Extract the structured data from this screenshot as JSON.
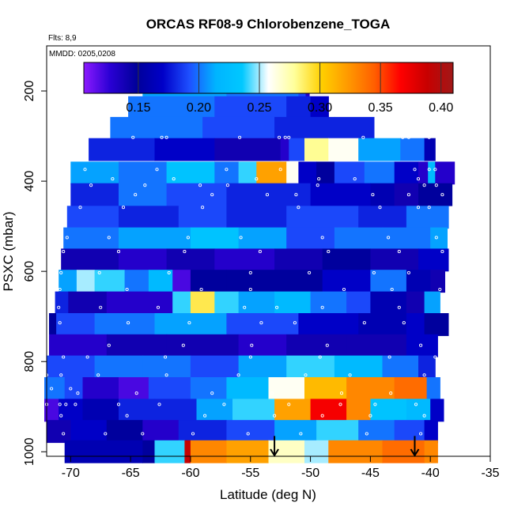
{
  "chart_data": {
    "type": "heatmap",
    "title": "ORCAS RF08-9 Chlorobenzene_TOGA",
    "flights_label": "Flts: 8,9",
    "date_label": "MMDD: 0205,0208",
    "xlabel": "Latitude (deg N)",
    "ylabel": "PSXC (mbar)",
    "xlim": [
      -72,
      -35
    ],
    "ylim": [
      1010,
      100
    ],
    "x_ticks": [
      -70,
      -65,
      -60,
      -55,
      -50,
      -45,
      -40,
      -35
    ],
    "y_ticks": [
      200,
      400,
      600,
      800,
      1000
    ],
    "colorbar": {
      "range": [
        0.105,
        0.41
      ],
      "ticks": [
        0.15,
        0.2,
        0.25,
        0.3,
        0.35,
        0.4
      ],
      "tick_labels": [
        "0.15",
        "0.20",
        "0.25",
        "0.30",
        "0.35",
        "0.40"
      ],
      "colors": [
        "#8c1aff",
        "#2a00d4",
        "#00009a",
        "#0000c8",
        "#1e50ff",
        "#00b4ff",
        "#00c8ff",
        "#ffffff",
        "#ffff99",
        "#ffd000",
        "#ff9a00",
        "#ff6000",
        "#ff0000",
        "#c80000",
        "#a01818"
      ]
    },
    "rows": [
      {
        "p": 188,
        "lat0": -64.0,
        "lat1": -50.1,
        "segments": [
          [
            -64.0,
            0.21
          ],
          [
            -57.0,
            0.2
          ],
          [
            -51.0,
            0.19
          ],
          [
            -50.4,
            0.13
          ]
        ]
      },
      {
        "p": 237,
        "lat0": -65.2,
        "lat1": -48.5,
        "segments": [
          [
            -65.2,
            0.2
          ],
          [
            -58.0,
            0.19
          ],
          [
            -52.0,
            0.18
          ],
          [
            -50.0,
            0.17
          ]
        ]
      },
      {
        "p": 283,
        "lat0": -66.7,
        "lat1": -44.7,
        "segments": [
          [
            -66.7,
            0.2
          ],
          [
            -59.0,
            0.19
          ],
          [
            -53.0,
            0.18
          ],
          [
            -48.0,
            0.18
          ]
        ]
      },
      {
        "p": 330,
        "lat0": -68.5,
        "lat1": -39.6,
        "segments": [
          [
            -68.5,
            0.18
          ],
          [
            -63.0,
            0.17
          ],
          [
            -58.0,
            0.14
          ],
          [
            -52.5,
            0.13
          ],
          [
            -51.8,
            0.19
          ],
          [
            -50.5,
            0.28
          ],
          [
            -48.5,
            0.26
          ],
          [
            -46.0,
            0.21
          ],
          [
            -42.5,
            0.2
          ],
          [
            -40.5,
            0.16
          ]
        ]
      },
      {
        "p": 382,
        "lat0": -70.0,
        "lat1": -38.0,
        "segments": [
          [
            -70.0,
            0.21
          ],
          [
            -66.0,
            0.2
          ],
          [
            -62.0,
            0.23
          ],
          [
            -58.0,
            0.2
          ],
          [
            -56.0,
            0.24
          ],
          [
            -54.5,
            0.32
          ],
          [
            -52.0,
            0.26
          ],
          [
            -51.0,
            0.17
          ],
          [
            -49.5,
            0.15
          ],
          [
            -48.0,
            0.19
          ],
          [
            -45.5,
            0.2
          ],
          [
            -43.0,
            0.17
          ],
          [
            -41.0,
            0.13
          ],
          [
            -40.2,
            0.22
          ],
          [
            -39.6,
            0.13
          ]
        ]
      },
      {
        "p": 430,
        "lat0": -70.0,
        "lat1": -38.2,
        "segments": [
          [
            -70.0,
            0.18
          ],
          [
            -66.0,
            0.2
          ],
          [
            -62.0,
            0.19
          ],
          [
            -57.0,
            0.18
          ],
          [
            -50.0,
            0.17
          ],
          [
            -45.0,
            0.16
          ],
          [
            -43.0,
            0.14
          ],
          [
            -41.0,
            0.15
          ]
        ]
      },
      {
        "p": 480,
        "lat0": -70.3,
        "lat1": -38.5,
        "segments": [
          [
            -70.3,
            0.19
          ],
          [
            -66.0,
            0.18
          ],
          [
            -61.0,
            0.19
          ],
          [
            -57.0,
            0.18
          ],
          [
            -52.0,
            0.19
          ],
          [
            -46.0,
            0.18
          ],
          [
            -42.0,
            0.2
          ]
        ]
      },
      {
        "p": 528,
        "lat0": -70.6,
        "lat1": -38.6,
        "segments": [
          [
            -70.6,
            0.2
          ],
          [
            -66.0,
            0.21
          ],
          [
            -60.0,
            0.23
          ],
          [
            -56.0,
            0.21
          ],
          [
            -52.0,
            0.19
          ],
          [
            -48.0,
            0.2
          ],
          [
            -44.0,
            0.2
          ],
          [
            -40.0,
            0.21
          ]
        ]
      },
      {
        "p": 575,
        "lat0": -70.8,
        "lat1": -38.5,
        "segments": [
          [
            -70.8,
            0.14
          ],
          [
            -66.0,
            0.13
          ],
          [
            -62.0,
            0.14
          ],
          [
            -58.0,
            0.13
          ],
          [
            -53.0,
            0.14
          ],
          [
            -49.0,
            0.15
          ],
          [
            -45.0,
            0.14
          ],
          [
            -41.0,
            0.17
          ]
        ]
      },
      {
        "p": 622,
        "lat0": -71.0,
        "lat1": -38.8,
        "segments": [
          [
            -71.0,
            0.21
          ],
          [
            -69.5,
            0.25
          ],
          [
            -68.0,
            0.24
          ],
          [
            -65.5,
            0.2
          ],
          [
            -63.5,
            0.22
          ],
          [
            -61.5,
            0.12
          ],
          [
            -60.0,
            0.15
          ],
          [
            -57.0,
            0.15
          ],
          [
            -53.0,
            0.15
          ],
          [
            -49.0,
            0.17
          ],
          [
            -45.0,
            0.2
          ],
          [
            -42.0,
            0.16
          ],
          [
            -40.0,
            0.14
          ]
        ]
      },
      {
        "p": 670,
        "lat0": -71.3,
        "lat1": -39.2,
        "segments": [
          [
            -71.3,
            0.18
          ],
          [
            -70.2,
            0.14
          ],
          [
            -67.0,
            0.13
          ],
          [
            -61.5,
            0.24
          ],
          [
            -60.0,
            0.29
          ],
          [
            -58.0,
            0.24
          ],
          [
            -56.0,
            0.21
          ],
          [
            -53.0,
            0.22
          ],
          [
            -50.0,
            0.2
          ],
          [
            -47.0,
            0.19
          ],
          [
            -45.0,
            0.16
          ],
          [
            -42.0,
            0.14
          ],
          [
            -40.5,
            0.21
          ]
        ]
      },
      {
        "p": 718,
        "lat0": -71.8,
        "lat1": -38.5,
        "segments": [
          [
            -71.8,
            0.15
          ],
          [
            -71.2,
            0.19
          ],
          [
            -68.0,
            0.2
          ],
          [
            -63.0,
            0.21
          ],
          [
            -57.0,
            0.19
          ],
          [
            -51.0,
            0.17
          ],
          [
            -46.0,
            0.16
          ],
          [
            -42.0,
            0.17
          ],
          [
            -40.5,
            0.15
          ]
        ]
      },
      {
        "p": 765,
        "lat0": -71.8,
        "lat1": -39.4,
        "segments": [
          [
            -71.8,
            0.13
          ],
          [
            -67.0,
            0.14
          ],
          [
            -62.0,
            0.14
          ],
          [
            -56.0,
            0.13
          ],
          [
            -52.0,
            0.14
          ],
          [
            -47.0,
            0.14
          ],
          [
            -42.0,
            0.17
          ]
        ]
      },
      {
        "p": 812,
        "lat0": -72.0,
        "lat1": -39.6,
        "segments": [
          [
            -72.0,
            0.19
          ],
          [
            -68.0,
            0.2
          ],
          [
            -64.0,
            0.2
          ],
          [
            -60.0,
            0.19
          ],
          [
            -56.0,
            0.21
          ],
          [
            -52.0,
            0.24
          ],
          [
            -48.0,
            0.22
          ],
          [
            -44.0,
            0.2
          ],
          [
            -41.0,
            0.18
          ]
        ]
      },
      {
        "p": 860,
        "lat0": -72.2,
        "lat1": -39.2,
        "segments": [
          [
            -72.2,
            0.2
          ],
          [
            -70.5,
            0.19
          ],
          [
            -69.0,
            0.13
          ],
          [
            -66.0,
            0.12
          ],
          [
            -63.5,
            0.19
          ],
          [
            -60.0,
            0.2
          ],
          [
            -57.0,
            0.22
          ],
          [
            -53.5,
            0.26
          ],
          [
            -50.5,
            0.31
          ],
          [
            -47.0,
            0.33
          ],
          [
            -43.0,
            0.34
          ],
          [
            -40.3,
            0.2
          ]
        ]
      },
      {
        "p": 908,
        "lat0": -72.2,
        "lat1": -38.9,
        "segments": [
          [
            -72.2,
            0.12
          ],
          [
            -71.0,
            0.17
          ],
          [
            -69.0,
            0.16
          ],
          [
            -66.0,
            0.18
          ],
          [
            -63.0,
            0.18
          ],
          [
            -59.5,
            0.21
          ],
          [
            -56.5,
            0.24
          ],
          [
            -53.0,
            0.32
          ],
          [
            -50.0,
            0.37
          ],
          [
            -47.0,
            0.33
          ],
          [
            -45.0,
            0.23
          ],
          [
            -42.0,
            0.22
          ],
          [
            -40.0,
            0.17
          ]
        ]
      },
      {
        "p": 955,
        "lat0": -72.0,
        "lat1": -39.4,
        "segments": [
          [
            -72.0,
            0.14
          ],
          [
            -70.0,
            0.17
          ],
          [
            -67.0,
            0.15
          ],
          [
            -64.0,
            0.13
          ],
          [
            -61.0,
            0.18
          ],
          [
            -57.0,
            0.19
          ],
          [
            -53.0,
            0.21
          ],
          [
            -49.5,
            0.24
          ],
          [
            -46.0,
            0.2
          ],
          [
            -43.0,
            0.19
          ],
          [
            -40.5,
            0.17
          ]
        ]
      },
      {
        "p": 1000,
        "lat0": -70.5,
        "lat1": -39.4,
        "segments": [
          [
            -70.5,
            0.16
          ],
          [
            -64.0,
            0.15
          ],
          [
            -63.0,
            0.24
          ],
          [
            -60.5,
            0.39
          ],
          [
            -60.0,
            0.33
          ],
          [
            -57.0,
            0.32
          ],
          [
            -53.5,
            0.27
          ],
          [
            -50.5,
            0.25
          ],
          [
            -48.5,
            0.33
          ],
          [
            -44.0,
            0.34
          ],
          [
            -40.5,
            0.33
          ]
        ]
      }
    ],
    "points": [
      [
        -60.0,
        160
      ],
      [
        -57.2,
        160
      ],
      [
        -52.5,
        160
      ],
      [
        -49.5,
        160
      ],
      [
        -50.5,
        189
      ],
      [
        -50.0,
        193
      ],
      [
        -64.8,
        303
      ],
      [
        -62.4,
        303
      ],
      [
        -62.0,
        303
      ],
      [
        -55.9,
        303
      ],
      [
        -52.6,
        303
      ],
      [
        -52.1,
        303
      ],
      [
        -51.8,
        303
      ],
      [
        -45.6,
        303
      ],
      [
        -42.3,
        303
      ],
      [
        -41.8,
        303
      ],
      [
        -40.1,
        303
      ],
      [
        -68.8,
        374
      ],
      [
        -62.8,
        374
      ],
      [
        -57.0,
        374
      ],
      [
        -52.5,
        374
      ],
      [
        -41.3,
        374
      ],
      [
        -40.1,
        374
      ],
      [
        -39.6,
        374
      ],
      [
        -66.5,
        395
      ],
      [
        -61.4,
        395
      ],
      [
        -54.5,
        395
      ],
      [
        -49.3,
        395
      ],
      [
        -46.3,
        395
      ],
      [
        -41.0,
        395
      ],
      [
        -68.3,
        409
      ],
      [
        -63.8,
        409
      ],
      [
        -59.2,
        409
      ],
      [
        -56.9,
        409
      ],
      [
        -49.4,
        409
      ],
      [
        -40.5,
        409
      ],
      [
        -39.5,
        409
      ],
      [
        -64.6,
        430
      ],
      [
        -58.2,
        430
      ],
      [
        -53.6,
        430
      ],
      [
        -51.2,
        430
      ],
      [
        -44.8,
        430
      ],
      [
        -41.8,
        430
      ],
      [
        -39.0,
        430
      ],
      [
        -69.2,
        458
      ],
      [
        -65.6,
        458
      ],
      [
        -59.0,
        458
      ],
      [
        -51.0,
        458
      ],
      [
        -44.2,
        458
      ],
      [
        -41.0,
        458
      ],
      [
        -40.1,
        458
      ],
      [
        -70.3,
        525
      ],
      [
        -66.8,
        525
      ],
      [
        -60.2,
        525
      ],
      [
        -55.8,
        525
      ],
      [
        -49.0,
        525
      ],
      [
        -43.5,
        525
      ],
      [
        -39.5,
        525
      ],
      [
        -70.6,
        556
      ],
      [
        -66.0,
        556
      ],
      [
        -60.5,
        556
      ],
      [
        -54.2,
        556
      ],
      [
        -48.5,
        556
      ],
      [
        -42.6,
        556
      ],
      [
        -39.0,
        556
      ],
      [
        -70.8,
        603
      ],
      [
        -67.6,
        603
      ],
      [
        -61.8,
        603
      ],
      [
        -55.0,
        603
      ],
      [
        -50.1,
        603
      ],
      [
        -44.7,
        603
      ],
      [
        -41.8,
        603
      ],
      [
        -70.9,
        640
      ],
      [
        -65.3,
        640
      ],
      [
        -59.1,
        640
      ],
      [
        -55.0,
        640
      ],
      [
        -47.2,
        640
      ],
      [
        -43.2,
        640
      ],
      [
        -39.2,
        640
      ],
      [
        -71.0,
        680
      ],
      [
        -67.5,
        680
      ],
      [
        -62.7,
        680
      ],
      [
        -55.5,
        680
      ],
      [
        -52.8,
        680
      ],
      [
        -49.0,
        680
      ],
      [
        -42.6,
        680
      ],
      [
        -70.9,
        714
      ],
      [
        -65.2,
        714
      ],
      [
        -60.1,
        714
      ],
      [
        -54.1,
        714
      ],
      [
        -51.3,
        714
      ],
      [
        -45.5,
        714
      ],
      [
        -42.2,
        714
      ],
      [
        -66.8,
        764
      ],
      [
        -60.6,
        764
      ],
      [
        -54.9,
        764
      ],
      [
        -48.6,
        764
      ],
      [
        -40.8,
        764
      ],
      [
        -70.6,
        790
      ],
      [
        -68.6,
        790
      ],
      [
        -62.1,
        790
      ],
      [
        -55.0,
        790
      ],
      [
        -49.2,
        790
      ],
      [
        -43.4,
        790
      ],
      [
        -39.6,
        790
      ],
      [
        -72.0,
        830
      ],
      [
        -70.8,
        830
      ],
      [
        -67.7,
        830
      ],
      [
        -62.0,
        830
      ],
      [
        -56.0,
        830
      ],
      [
        -50.4,
        830
      ],
      [
        -46.7,
        830
      ],
      [
        -40.5,
        830
      ],
      [
        -71.6,
        860
      ],
      [
        -70.0,
        860
      ],
      [
        -69.4,
        870
      ],
      [
        -64.5,
        870
      ],
      [
        -58.2,
        870
      ],
      [
        -53.2,
        870
      ],
      [
        -47.4,
        870
      ],
      [
        -43.3,
        870
      ],
      [
        -72.0,
        895
      ],
      [
        -70.9,
        895
      ],
      [
        -70.4,
        895
      ],
      [
        -69.6,
        895
      ],
      [
        -66.0,
        895
      ],
      [
        -62.6,
        895
      ],
      [
        -57.2,
        895
      ],
      [
        -51.8,
        895
      ],
      [
        -47.5,
        895
      ],
      [
        -44.6,
        895
      ],
      [
        -41.2,
        895
      ],
      [
        -70.8,
        920
      ],
      [
        -65.3,
        920
      ],
      [
        -58.8,
        920
      ],
      [
        -53.0,
        920
      ],
      [
        -49.0,
        920
      ],
      [
        -45.0,
        920
      ],
      [
        -40.5,
        920
      ],
      [
        -70.6,
        960
      ],
      [
        -67.1,
        960
      ],
      [
        -64.0,
        960
      ],
      [
        -59.8,
        960
      ],
      [
        -55.2,
        960
      ],
      [
        -50.8,
        960
      ],
      [
        -45.3,
        960
      ],
      [
        -40.8,
        960
      ]
    ],
    "arrows": [
      {
        "lat": -53.0,
        "p_top": 965,
        "p_bottom": 1010
      },
      {
        "lat": -41.3,
        "p_top": 965,
        "p_bottom": 1010
      }
    ]
  }
}
